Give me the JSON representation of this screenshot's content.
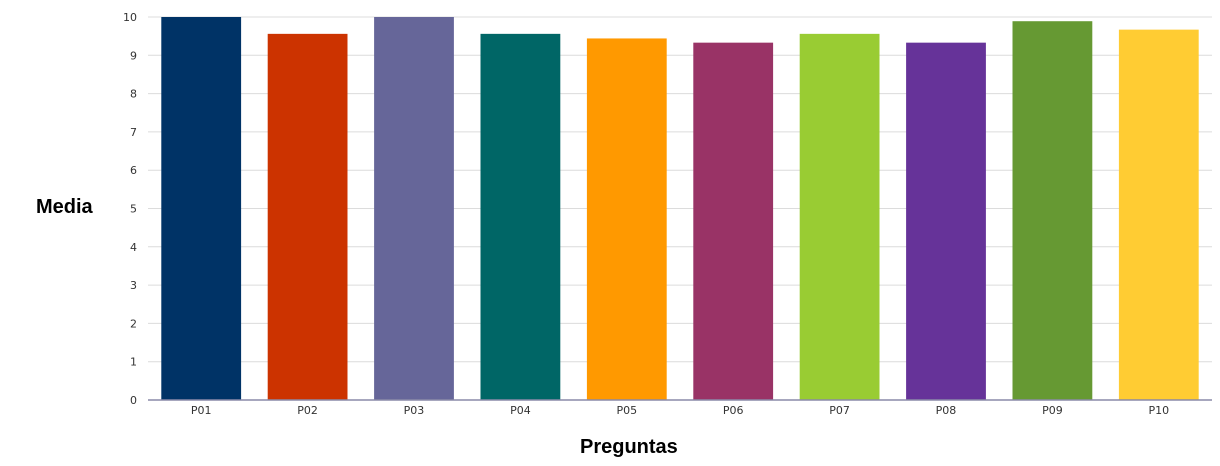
{
  "chart_data": {
    "type": "bar",
    "title": "",
    "xlabel": "Preguntas",
    "ylabel": "Media",
    "ylim": [
      0,
      10
    ],
    "yticks": [
      0,
      1,
      2,
      3,
      4,
      5,
      6,
      7,
      8,
      9,
      10
    ],
    "grid": true,
    "categories": [
      "P01",
      "P02",
      "P03",
      "P04",
      "P05",
      "P06",
      "P07",
      "P08",
      "P09",
      "P10"
    ],
    "values": [
      10,
      9.56,
      10,
      9.56,
      9.44,
      9.33,
      9.56,
      9.33,
      9.89,
      9.67
    ],
    "colors": [
      "#003366",
      "#cc3300",
      "#666699",
      "#006666",
      "#ff9900",
      "#993366",
      "#99cc33",
      "#663399",
      "#669933",
      "#ffcc33"
    ]
  }
}
